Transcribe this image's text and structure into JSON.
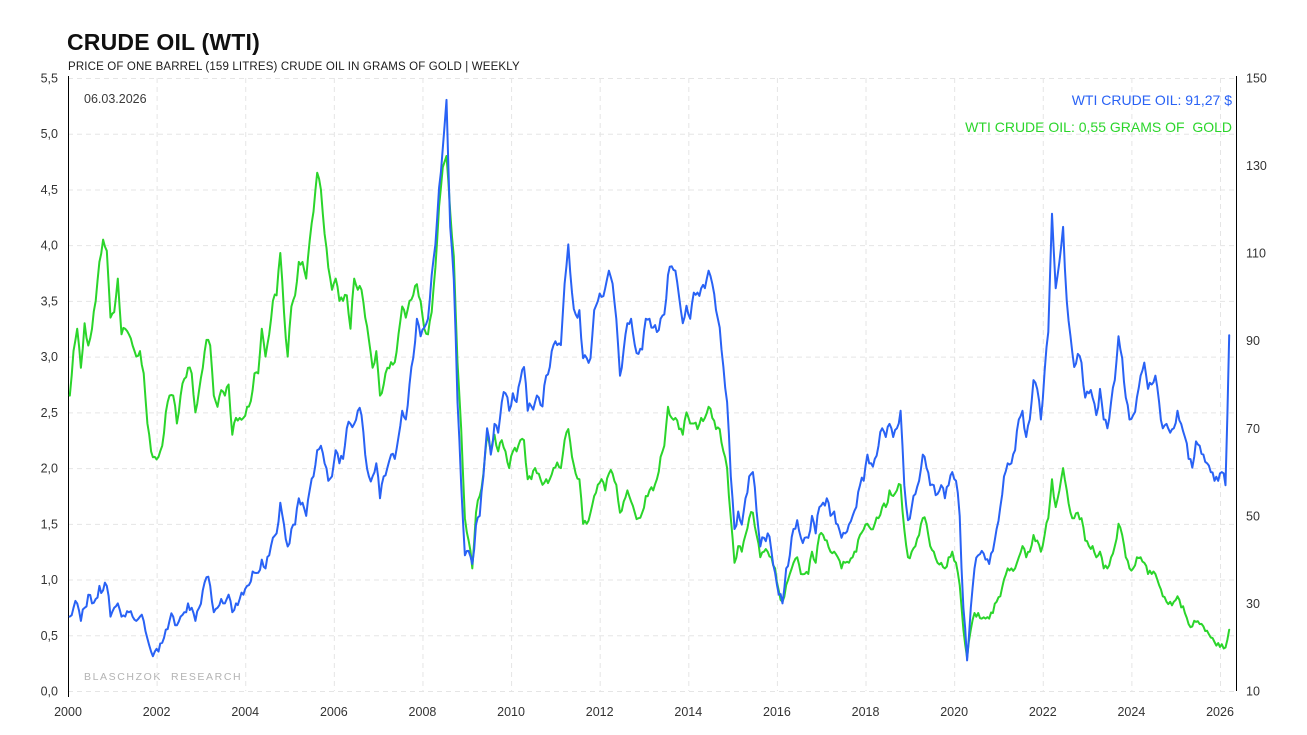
{
  "header": {
    "title": "CRUDE OIL (WTI)",
    "subtitle": "PRICE OF ONE BARREL (159 LITRES) CRUDE OIL IN GRAMS OF GOLD | WEEKLY"
  },
  "annotations": {
    "date_label": "06.03.2026",
    "watermark": "BLASCHZOK  RESEARCH"
  },
  "legend": [
    {
      "id": "usd",
      "label": "WTI CRUDE OIL: 91,27 $",
      "color": "#2962f5"
    },
    {
      "id": "gold",
      "label": "WTI CRUDE OIL: 0,55 GRAMS OF  GOLD",
      "color": "#2bd52b"
    }
  ],
  "chart_data": {
    "type": "line",
    "title": "CRUDE OIL (WTI)",
    "subtitle": "PRICE OF ONE BARREL (159 LITRES) CRUDE OIL IN GRAMS OF GOLD | WEEKLY",
    "frequency_shown": "WEEKLY",
    "sampling_used_here": "monthly estimates read from plot",
    "x_axis": {
      "unit": "year",
      "tick_labels": [
        "2000",
        "2002",
        "2004",
        "2006",
        "2008",
        "2010",
        "2012",
        "2014",
        "2016",
        "2018",
        "2020",
        "2022",
        "2024",
        "2026"
      ],
      "range": [
        2000,
        2026.4
      ],
      "grid": true
    },
    "left_axis": {
      "applies_to": "grams of gold series",
      "tick_labels": [
        "0,0",
        "0,5",
        "1,0",
        "1,5",
        "2,0",
        "2,5",
        "3,0",
        "3,5",
        "4,0",
        "4,5",
        "5,0",
        "5,5"
      ],
      "min": 0,
      "max": 5.5,
      "grid": true
    },
    "right_axis": {
      "applies_to": "USD series",
      "tick_labels": [
        "10",
        "30",
        "50",
        "70",
        "90",
        "110",
        "130",
        "150"
      ],
      "min": 10,
      "max": 150,
      "grid": false
    },
    "legend_position": "top-right",
    "x_start_year": 2000,
    "points_per_year": 12,
    "last_point_date": "06.03.2026",
    "series": [
      {
        "name": "WTI CRUDE OIL in USD",
        "axis": "right",
        "color": "#2962f5",
        "last_value": 91.27,
        "last_value_label": "91,27 $",
        "values": [
          27,
          29,
          30,
          26,
          29,
          32,
          30,
          31,
          34,
          33,
          34,
          27,
          29,
          30,
          27,
          27,
          28,
          27,
          26,
          27,
          26,
          22,
          19,
          19,
          19,
          21,
          24,
          26,
          27,
          25,
          27,
          28,
          30,
          29,
          26,
          29,
          33,
          36,
          34,
          28,
          29,
          31,
          30,
          32,
          28,
          30,
          31,
          32,
          34,
          35,
          37,
          37,
          40,
          38,
          41,
          45,
          46,
          53,
          48,
          43,
          47,
          48,
          54,
          53,
          50,
          56,
          59,
          65,
          66,
          62,
          58,
          59,
          65,
          62,
          63,
          70,
          71,
          71,
          74,
          73,
          64,
          59,
          59,
          62,
          54,
          59,
          61,
          64,
          63,
          68,
          74,
          72,
          80,
          86,
          95,
          91,
          93,
          95,
          105,
          112,
          125,
          134,
          145,
          116,
          104,
          76,
          57,
          41,
          42,
          39,
          48,
          50,
          59,
          70,
          64,
          71,
          69,
          76,
          78,
          74,
          78,
          76,
          81,
          84,
          74,
          75,
          76,
          77,
          75,
          82,
          84,
          89,
          89,
          89,
          103,
          112,
          101,
          96,
          97,
          86,
          86,
          86,
          97,
          99,
          100,
          102,
          106,
          103,
          95,
          82,
          88,
          94,
          95,
          89,
          87,
          88,
          95,
          95,
          93,
          92,
          95,
          96,
          105,
          107,
          106,
          100,
          94,
          98,
          95,
          101,
          101,
          102,
          102,
          106,
          103,
          97,
          93,
          84,
          76,
          59,
          47,
          51,
          48,
          54,
          59,
          60,
          51,
          43,
          45,
          46,
          42,
          37,
          32,
          30,
          38,
          41,
          47,
          49,
          45,
          45,
          45,
          50,
          46,
          52,
          53,
          54,
          50,
          51,
          48,
          45,
          46,
          48,
          50,
          52,
          57,
          58,
          64,
          62,
          63,
          66,
          70,
          68,
          71,
          68,
          70,
          74,
          57,
          49,
          52,
          55,
          58,
          64,
          61,
          57,
          57,
          55,
          57,
          54,
          57,
          60,
          58,
          50,
          29,
          17,
          29,
          38,
          41,
          42,
          40,
          39,
          42,
          47,
          52,
          59,
          62,
          62,
          65,
          72,
          74,
          68,
          72,
          81,
          79,
          72,
          83,
          92,
          119,
          102,
          108,
          116,
          99,
          91,
          84,
          87,
          85,
          77,
          78,
          77,
          73,
          79,
          72,
          70,
          76,
          81,
          91,
          86,
          77,
          72,
          73,
          77,
          82,
          85,
          79,
          80,
          82,
          76,
          70,
          71,
          69,
          70,
          74,
          71,
          68,
          63,
          61,
          67,
          66,
          64,
          62,
          60,
          58,
          58,
          60,
          57,
          91.27
        ]
      },
      {
        "name": "WTI CRUDE OIL in grams of gold",
        "axis": "left",
        "color": "#2bd52b",
        "last_value": 0.55,
        "last_value_label": "0,55 GRAMS OF GOLD",
        "values": [
          2.65,
          3.05,
          3.25,
          2.9,
          3.3,
          3.1,
          3.25,
          3.5,
          3.85,
          4.05,
          3.95,
          3.35,
          3.4,
          3.7,
          3.2,
          3.25,
          3.2,
          3.1,
          3.0,
          3.05,
          2.85,
          2.4,
          2.15,
          2.1,
          2.1,
          2.2,
          2.5,
          2.65,
          2.65,
          2.4,
          2.65,
          2.8,
          2.9,
          2.85,
          2.5,
          2.7,
          2.9,
          3.15,
          3.1,
          2.65,
          2.55,
          2.7,
          2.65,
          2.75,
          2.3,
          2.45,
          2.45,
          2.45,
          2.55,
          2.6,
          2.85,
          2.85,
          3.25,
          3.0,
          3.2,
          3.5,
          3.55,
          3.93,
          3.4,
          3.0,
          3.45,
          3.55,
          3.85,
          3.85,
          3.7,
          4.05,
          4.3,
          4.65,
          4.5,
          4.1,
          3.8,
          3.6,
          3.7,
          3.5,
          3.5,
          3.55,
          3.25,
          3.7,
          3.6,
          3.6,
          3.35,
          3.15,
          2.9,
          3.05,
          2.65,
          2.75,
          2.9,
          2.95,
          2.95,
          3.2,
          3.45,
          3.35,
          3.5,
          3.55,
          3.65,
          3.5,
          3.25,
          3.2,
          3.4,
          3.8,
          4.35,
          4.7,
          4.8,
          4.3,
          3.9,
          2.95,
          2.35,
          1.55,
          1.35,
          1.1,
          1.6,
          1.75,
          1.95,
          2.3,
          2.15,
          2.3,
          2.15,
          2.25,
          2.15,
          2.0,
          2.15,
          2.15,
          2.25,
          2.25,
          1.9,
          1.9,
          2.0,
          1.95,
          1.85,
          1.9,
          1.9,
          2.0,
          2.05,
          2.0,
          2.25,
          2.35,
          2.1,
          1.95,
          1.9,
          1.5,
          1.5,
          1.6,
          1.75,
          1.85,
          1.9,
          1.8,
          1.95,
          1.95,
          1.85,
          1.6,
          1.7,
          1.8,
          1.7,
          1.6,
          1.55,
          1.6,
          1.75,
          1.8,
          1.8,
          1.9,
          2.1,
          2.2,
          2.55,
          2.45,
          2.45,
          2.35,
          2.3,
          2.5,
          2.4,
          2.4,
          2.35,
          2.45,
          2.45,
          2.55,
          2.45,
          2.35,
          2.35,
          2.15,
          2.0,
          1.55,
          1.15,
          1.3,
          1.25,
          1.4,
          1.55,
          1.6,
          1.4,
          1.2,
          1.25,
          1.25,
          1.2,
          1.1,
          0.9,
          0.8,
          0.95,
          1.05,
          1.15,
          1.2,
          1.05,
          1.05,
          1.05,
          1.25,
          1.15,
          1.4,
          1.4,
          1.35,
          1.25,
          1.25,
          1.2,
          1.1,
          1.15,
          1.15,
          1.2,
          1.25,
          1.4,
          1.45,
          1.5,
          1.45,
          1.5,
          1.55,
          1.65,
          1.65,
          1.8,
          1.75,
          1.8,
          1.85,
          1.45,
          1.2,
          1.25,
          1.3,
          1.4,
          1.55,
          1.5,
          1.3,
          1.25,
          1.15,
          1.15,
          1.1,
          1.2,
          1.25,
          1.15,
          0.95,
          0.55,
          0.3,
          0.55,
          0.7,
          0.7,
          0.65,
          0.65,
          0.65,
          0.7,
          0.8,
          0.85,
          1.0,
          1.1,
          1.1,
          1.1,
          1.2,
          1.3,
          1.2,
          1.25,
          1.4,
          1.35,
          1.25,
          1.4,
          1.55,
          1.9,
          1.65,
          1.8,
          2.0,
          1.8,
          1.6,
          1.55,
          1.6,
          1.55,
          1.35,
          1.3,
          1.3,
          1.2,
          1.25,
          1.1,
          1.1,
          1.2,
          1.3,
          1.5,
          1.4,
          1.2,
          1.1,
          1.1,
          1.2,
          1.2,
          1.15,
          1.05,
          1.05,
          1.05,
          0.95,
          0.85,
          0.8,
          0.8,
          0.8,
          0.85,
          0.75,
          0.7,
          0.6,
          0.58,
          0.62,
          0.6,
          0.58,
          0.54,
          0.48,
          0.44,
          0.43,
          0.42,
          0.39,
          0.55
        ]
      }
    ],
    "grid_style": {
      "color": "#e5e5e5",
      "dashed": true,
      "h_step_left_axis": 0.5,
      "v_step_years": 2
    }
  }
}
